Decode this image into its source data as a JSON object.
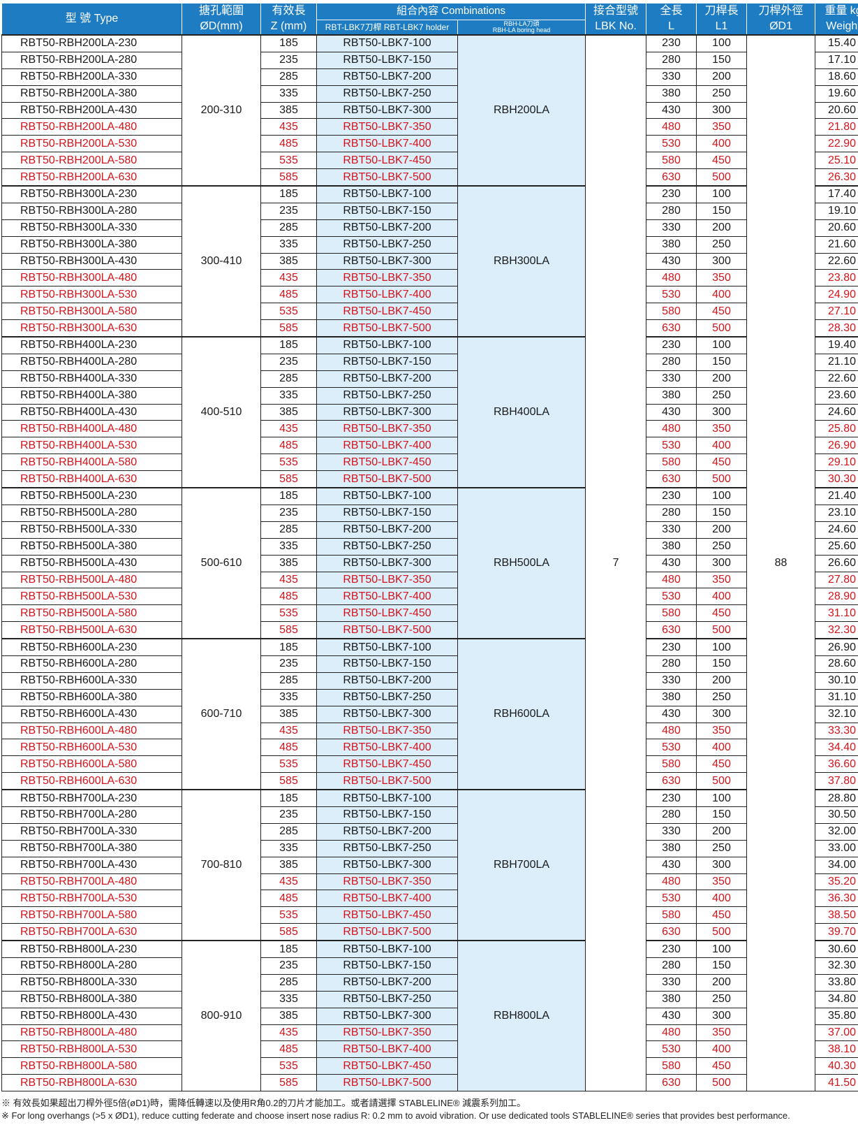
{
  "header": {
    "type": "型 號  Type",
    "bore_zh": "搪孔範圍",
    "bore_en": "ØD(mm)",
    "z_zh": "有效長",
    "z_en": "Z (mm)",
    "combinations": "組合內容 Combinations",
    "holder": "RBT-LBK7刀桿  RBT-LBK7 holder",
    "head_zh": "RBH-LA刀頭",
    "head_en": "RBH-LA boring head",
    "lbk_zh": "接合型號",
    "lbk_en": "LBK No.",
    "L_zh": "全長",
    "L_en": "L",
    "L1_zh": "刀桿長",
    "L1_en": "L1",
    "d1_zh": "刀桿外徑",
    "d1_en": "ØD1",
    "w": "重量 kg",
    "w_en": "Weight"
  },
  "lbk_no": "7",
  "d1": "88",
  "colors": {
    "header_bg": "#1e7dc2",
    "highlight_red": "#d6131a",
    "combo_bg": "#dbeefa"
  },
  "groups": [
    {
      "bore": "200-310",
      "head": "RBH200LA",
      "rows": [
        {
          "type": "RBT50-RBH200LA-230",
          "z": "185",
          "holder": "RBT50-LBK7-100",
          "L": "230",
          "L1": "100",
          "w": "15.40",
          "red": false
        },
        {
          "type": "RBT50-RBH200LA-280",
          "z": "235",
          "holder": "RBT50-LBK7-150",
          "L": "280",
          "L1": "150",
          "w": "17.10",
          "red": false
        },
        {
          "type": "RBT50-RBH200LA-330",
          "z": "285",
          "holder": "RBT50-LBK7-200",
          "L": "330",
          "L1": "200",
          "w": "18.60",
          "red": false
        },
        {
          "type": "RBT50-RBH200LA-380",
          "z": "335",
          "holder": "RBT50-LBK7-250",
          "L": "380",
          "L1": "250",
          "w": "19.60",
          "red": false
        },
        {
          "type": "RBT50-RBH200LA-430",
          "z": "385",
          "holder": "RBT50-LBK7-300",
          "L": "430",
          "L1": "300",
          "w": "20.60",
          "red": false
        },
        {
          "type": "RBT50-RBH200LA-480",
          "z": "435",
          "holder": "RBT50-LBK7-350",
          "L": "480",
          "L1": "350",
          "w": "21.80",
          "red": true
        },
        {
          "type": "RBT50-RBH200LA-530",
          "z": "485",
          "holder": "RBT50-LBK7-400",
          "L": "530",
          "L1": "400",
          "w": "22.90",
          "red": true
        },
        {
          "type": "RBT50-RBH200LA-580",
          "z": "535",
          "holder": "RBT50-LBK7-450",
          "L": "580",
          "L1": "450",
          "w": "25.10",
          "red": true
        },
        {
          "type": "RBT50-RBH200LA-630",
          "z": "585",
          "holder": "RBT50-LBK7-500",
          "L": "630",
          "L1": "500",
          "w": "26.30",
          "red": true
        }
      ]
    },
    {
      "bore": "300-410",
      "head": "RBH300LA",
      "rows": [
        {
          "type": "RBT50-RBH300LA-230",
          "z": "185",
          "holder": "RBT50-LBK7-100",
          "L": "230",
          "L1": "100",
          "w": "17.40",
          "red": false
        },
        {
          "type": "RBT50-RBH300LA-280",
          "z": "235",
          "holder": "RBT50-LBK7-150",
          "L": "280",
          "L1": "150",
          "w": "19.10",
          "red": false
        },
        {
          "type": "RBT50-RBH300LA-330",
          "z": "285",
          "holder": "RBT50-LBK7-200",
          "L": "330",
          "L1": "200",
          "w": "20.60",
          "red": false
        },
        {
          "type": "RBT50-RBH300LA-380",
          "z": "335",
          "holder": "RBT50-LBK7-250",
          "L": "380",
          "L1": "250",
          "w": "21.60",
          "red": false
        },
        {
          "type": "RBT50-RBH300LA-430",
          "z": "385",
          "holder": "RBT50-LBK7-300",
          "L": "430",
          "L1": "300",
          "w": "22.60",
          "red": false
        },
        {
          "type": "RBT50-RBH300LA-480",
          "z": "435",
          "holder": "RBT50-LBK7-350",
          "L": "480",
          "L1": "350",
          "w": "23.80",
          "red": true
        },
        {
          "type": "RBT50-RBH300LA-530",
          "z": "485",
          "holder": "RBT50-LBK7-400",
          "L": "530",
          "L1": "400",
          "w": "24.90",
          "red": true
        },
        {
          "type": "RBT50-RBH300LA-580",
          "z": "535",
          "holder": "RBT50-LBK7-450",
          "L": "580",
          "L1": "450",
          "w": "27.10",
          "red": true
        },
        {
          "type": "RBT50-RBH300LA-630",
          "z": "585",
          "holder": "RBT50-LBK7-500",
          "L": "630",
          "L1": "500",
          "w": "28.30",
          "red": true
        }
      ]
    },
    {
      "bore": "400-510",
      "head": "RBH400LA",
      "rows": [
        {
          "type": "RBT50-RBH400LA-230",
          "z": "185",
          "holder": "RBT50-LBK7-100",
          "L": "230",
          "L1": "100",
          "w": "19.40",
          "red": false
        },
        {
          "type": "RBT50-RBH400LA-280",
          "z": "235",
          "holder": "RBT50-LBK7-150",
          "L": "280",
          "L1": "150",
          "w": "21.10",
          "red": false
        },
        {
          "type": "RBT50-RBH400LA-330",
          "z": "285",
          "holder": "RBT50-LBK7-200",
          "L": "330",
          "L1": "200",
          "w": "22.60",
          "red": false
        },
        {
          "type": "RBT50-RBH400LA-380",
          "z": "335",
          "holder": "RBT50-LBK7-250",
          "L": "380",
          "L1": "250",
          "w": "23.60",
          "red": false
        },
        {
          "type": "RBT50-RBH400LA-430",
          "z": "385",
          "holder": "RBT50-LBK7-300",
          "L": "430",
          "L1": "300",
          "w": "24.60",
          "red": false
        },
        {
          "type": "RBT50-RBH400LA-480",
          "z": "435",
          "holder": "RBT50-LBK7-350",
          "L": "480",
          "L1": "350",
          "w": "25.80",
          "red": true
        },
        {
          "type": "RBT50-RBH400LA-530",
          "z": "485",
          "holder": "RBT50-LBK7-400",
          "L": "530",
          "L1": "400",
          "w": "26.90",
          "red": true
        },
        {
          "type": "RBT50-RBH400LA-580",
          "z": "535",
          "holder": "RBT50-LBK7-450",
          "L": "580",
          "L1": "450",
          "w": "29.10",
          "red": true
        },
        {
          "type": "RBT50-RBH400LA-630",
          "z": "585",
          "holder": "RBT50-LBK7-500",
          "L": "630",
          "L1": "500",
          "w": "30.30",
          "red": true
        }
      ]
    },
    {
      "bore": "500-610",
      "head": "RBH500LA",
      "rows": [
        {
          "type": "RBT50-RBH500LA-230",
          "z": "185",
          "holder": "RBT50-LBK7-100",
          "L": "230",
          "L1": "100",
          "w": "21.40",
          "red": false
        },
        {
          "type": "RBT50-RBH500LA-280",
          "z": "235",
          "holder": "RBT50-LBK7-150",
          "L": "280",
          "L1": "150",
          "w": "23.10",
          "red": false
        },
        {
          "type": "RBT50-RBH500LA-330",
          "z": "285",
          "holder": "RBT50-LBK7-200",
          "L": "330",
          "L1": "200",
          "w": "24.60",
          "red": false
        },
        {
          "type": "RBT50-RBH500LA-380",
          "z": "335",
          "holder": "RBT50-LBK7-250",
          "L": "380",
          "L1": "250",
          "w": "25.60",
          "red": false
        },
        {
          "type": "RBT50-RBH500LA-430",
          "z": "385",
          "holder": "RBT50-LBK7-300",
          "L": "430",
          "L1": "300",
          "w": "26.60",
          "red": false
        },
        {
          "type": "RBT50-RBH500LA-480",
          "z": "435",
          "holder": "RBT50-LBK7-350",
          "L": "480",
          "L1": "350",
          "w": "27.80",
          "red": true
        },
        {
          "type": "RBT50-RBH500LA-530",
          "z": "485",
          "holder": "RBT50-LBK7-400",
          "L": "530",
          "L1": "400",
          "w": "28.90",
          "red": true
        },
        {
          "type": "RBT50-RBH500LA-580",
          "z": "535",
          "holder": "RBT50-LBK7-450",
          "L": "580",
          "L1": "450",
          "w": "31.10",
          "red": true
        },
        {
          "type": "RBT50-RBH500LA-630",
          "z": "585",
          "holder": "RBT50-LBK7-500",
          "L": "630",
          "L1": "500",
          "w": "32.30",
          "red": true
        }
      ]
    },
    {
      "bore": "600-710",
      "head": "RBH600LA",
      "rows": [
        {
          "type": "RBT50-RBH600LA-230",
          "z": "185",
          "holder": "RBT50-LBK7-100",
          "L": "230",
          "L1": "100",
          "w": "26.90",
          "red": false
        },
        {
          "type": "RBT50-RBH600LA-280",
          "z": "235",
          "holder": "RBT50-LBK7-150",
          "L": "280",
          "L1": "150",
          "w": "28.60",
          "red": false
        },
        {
          "type": "RBT50-RBH600LA-330",
          "z": "285",
          "holder": "RBT50-LBK7-200",
          "L": "330",
          "L1": "200",
          "w": "30.10",
          "red": false
        },
        {
          "type": "RBT50-RBH600LA-380",
          "z": "335",
          "holder": "RBT50-LBK7-250",
          "L": "380",
          "L1": "250",
          "w": "31.10",
          "red": false
        },
        {
          "type": "RBT50-RBH600LA-430",
          "z": "385",
          "holder": "RBT50-LBK7-300",
          "L": "430",
          "L1": "300",
          "w": "32.10",
          "red": false
        },
        {
          "type": "RBT50-RBH600LA-480",
          "z": "435",
          "holder": "RBT50-LBK7-350",
          "L": "480",
          "L1": "350",
          "w": "33.30",
          "red": true
        },
        {
          "type": "RBT50-RBH600LA-530",
          "z": "485",
          "holder": "RBT50-LBK7-400",
          "L": "530",
          "L1": "400",
          "w": "34.40",
          "red": true
        },
        {
          "type": "RBT50-RBH600LA-580",
          "z": "535",
          "holder": "RBT50-LBK7-450",
          "L": "580",
          "L1": "450",
          "w": "36.60",
          "red": true
        },
        {
          "type": "RBT50-RBH600LA-630",
          "z": "585",
          "holder": "RBT50-LBK7-500",
          "L": "630",
          "L1": "500",
          "w": "37.80",
          "red": true
        }
      ]
    },
    {
      "bore": "700-810",
      "head": "RBH700LA",
      "rows": [
        {
          "type": "RBT50-RBH700LA-230",
          "z": "185",
          "holder": "RBT50-LBK7-100",
          "L": "230",
          "L1": "100",
          "w": "28.80",
          "red": false
        },
        {
          "type": "RBT50-RBH700LA-280",
          "z": "235",
          "holder": "RBT50-LBK7-150",
          "L": "280",
          "L1": "150",
          "w": "30.50",
          "red": false
        },
        {
          "type": "RBT50-RBH700LA-330",
          "z": "285",
          "holder": "RBT50-LBK7-200",
          "L": "330",
          "L1": "200",
          "w": "32.00",
          "red": false
        },
        {
          "type": "RBT50-RBH700LA-380",
          "z": "335",
          "holder": "RBT50-LBK7-250",
          "L": "380",
          "L1": "250",
          "w": "33.00",
          "red": false
        },
        {
          "type": "RBT50-RBH700LA-430",
          "z": "385",
          "holder": "RBT50-LBK7-300",
          "L": "430",
          "L1": "300",
          "w": "34.00",
          "red": false
        },
        {
          "type": "RBT50-RBH700LA-480",
          "z": "435",
          "holder": "RBT50-LBK7-350",
          "L": "480",
          "L1": "350",
          "w": "35.20",
          "red": true
        },
        {
          "type": "RBT50-RBH700LA-530",
          "z": "485",
          "holder": "RBT50-LBK7-400",
          "L": "530",
          "L1": "400",
          "w": "36.30",
          "red": true
        },
        {
          "type": "RBT50-RBH700LA-580",
          "z": "535",
          "holder": "RBT50-LBK7-450",
          "L": "580",
          "L1": "450",
          "w": "38.50",
          "red": true
        },
        {
          "type": "RBT50-RBH700LA-630",
          "z": "585",
          "holder": "RBT50-LBK7-500",
          "L": "630",
          "L1": "500",
          "w": "39.70",
          "red": true
        }
      ]
    },
    {
      "bore": "800-910",
      "head": "RBH800LA",
      "rows": [
        {
          "type": "RBT50-RBH800LA-230",
          "z": "185",
          "holder": "RBT50-LBK7-100",
          "L": "230",
          "L1": "100",
          "w": "30.60",
          "red": false
        },
        {
          "type": "RBT50-RBH800LA-280",
          "z": "235",
          "holder": "RBT50-LBK7-150",
          "L": "280",
          "L1": "150",
          "w": "32.30",
          "red": false
        },
        {
          "type": "RBT50-RBH800LA-330",
          "z": "285",
          "holder": "RBT50-LBK7-200",
          "L": "330",
          "L1": "200",
          "w": "33.80",
          "red": false
        },
        {
          "type": "RBT50-RBH800LA-380",
          "z": "335",
          "holder": "RBT50-LBK7-250",
          "L": "380",
          "L1": "250",
          "w": "34.80",
          "red": false
        },
        {
          "type": "RBT50-RBH800LA-430",
          "z": "385",
          "holder": "RBT50-LBK7-300",
          "L": "430",
          "L1": "300",
          "w": "35.80",
          "red": false
        },
        {
          "type": "RBT50-RBH800LA-480",
          "z": "435",
          "holder": "RBT50-LBK7-350",
          "L": "480",
          "L1": "350",
          "w": "37.00",
          "red": true
        },
        {
          "type": "RBT50-RBH800LA-530",
          "z": "485",
          "holder": "RBT50-LBK7-400",
          "L": "530",
          "L1": "400",
          "w": "38.10",
          "red": true
        },
        {
          "type": "RBT50-RBH800LA-580",
          "z": "535",
          "holder": "RBT50-LBK7-450",
          "L": "580",
          "L1": "450",
          "w": "40.30",
          "red": true
        },
        {
          "type": "RBT50-RBH800LA-630",
          "z": "585",
          "holder": "RBT50-LBK7-500",
          "L": "630",
          "L1": "500",
          "w": "41.50",
          "red": true
        }
      ]
    }
  ],
  "notes": {
    "zh": "※ 有效長如果超出刀桿外徑5倍(øD1)時，需降低轉速以及使用R角0.2的刀片才能加工。或者請選擇 STABLELINE® 減震系列加工。",
    "en": "※  For long overhangs (>5 x ØD1), reduce cutting federate and choose insert nose radius R: 0.2 mm to avoid vibration. Or use dedicated tools STABLELINE® series that provides best performance."
  }
}
